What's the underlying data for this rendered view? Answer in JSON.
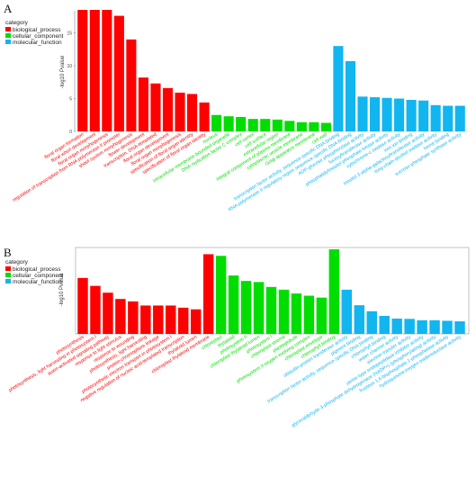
{
  "colors": {
    "biological_process": "#ff0000",
    "cellular_component": "#00dd00",
    "molecular_function": "#11b5f0"
  },
  "chart_data": [
    {
      "panel": "A",
      "type": "bar",
      "ylabel": "-log10 Pvalue",
      "yticks": [
        0,
        5,
        10,
        15
      ],
      "ylim": [
        0,
        18.5
      ],
      "grid": false,
      "legend": {
        "title": "category",
        "position": "top-left",
        "entries": [
          "biological_process",
          "cellular_component",
          "molecular_function"
        ]
      },
      "categories": [
        "floral organ formation",
        "floral whorl development",
        "floral organ morphogenesis",
        "regulation of transcription from RNA polymerase II promoter",
        "shoot system morphogenesis",
        "flower development",
        "transcription, DNA-templated",
        "floral organ development",
        "floral organ morphogenesis",
        "specification of floral organ identity",
        "specification of floral organ identity",
        "nucleus",
        "intracellular membrane-bounded organelle",
        "DNA replication factor C complex",
        "cell cortex",
        "cell surface",
        "extracellular region",
        "integral component of plasma membrane",
        "cytoplasmic vesicle membrane",
        "Golgi apparatus membrane",
        "cell wall",
        "transcription factor activity, sequence-specific DNA binding",
        "RNA polymerase II regulatory region sequence-specific DNA binding",
        "ADP-glucose phosphorylase activity",
        "fucosyltransferase activity",
        "phosphatidylinositol phosphate kinase activity",
        "cytochrome-c oxidase activity",
        "iron ion binding",
        "inositol 3-alpha-galactosyltransferase activity",
        "long-chain-alcohol oxidase activity",
        "heme binding",
        "sucrose-phosphate synthase activity"
      ],
      "groups": [
        "biological_process",
        "biological_process",
        "biological_process",
        "biological_process",
        "biological_process",
        "biological_process",
        "biological_process",
        "biological_process",
        "biological_process",
        "biological_process",
        "biological_process",
        "cellular_component",
        "cellular_component",
        "cellular_component",
        "cellular_component",
        "cellular_component",
        "cellular_component",
        "cellular_component",
        "cellular_component",
        "cellular_component",
        "cellular_component",
        "molecular_function",
        "molecular_function",
        "molecular_function",
        "molecular_function",
        "molecular_function",
        "molecular_function",
        "molecular_function",
        "molecular_function",
        "molecular_function",
        "molecular_function",
        "molecular_function"
      ],
      "values": [
        18.6,
        18.6,
        18.6,
        17.6,
        14.0,
        8.2,
        7.3,
        6.6,
        5.9,
        5.7,
        4.4,
        2.5,
        2.3,
        2.2,
        1.9,
        1.9,
        1.8,
        1.6,
        1.4,
        1.4,
        1.3,
        13.0,
        10.7,
        5.3,
        5.2,
        5.1,
        5.0,
        4.8,
        4.7,
        4.0,
        3.9,
        3.9
      ]
    },
    {
      "panel": "B",
      "type": "bar",
      "ylabel": "-log10 Pvalue",
      "yticks": [],
      "ylim": [
        0,
        31
      ],
      "grid": false,
      "legend": {
        "title": "category",
        "position": "top-left",
        "entries": [
          "biological_process",
          "cellular_component",
          "molecular_function"
        ]
      },
      "categories": [
        "photosynthesis",
        "photosynthesis, light harvesting in photosystem I",
        "auxin-activated signaling pathway",
        "response to light stimulus",
        "response to wounding",
        "photosynthesis, light harvesting",
        "protein-chromophore linkage",
        "photosynthetic electron transport in photosystem I",
        "negative regulation of nucleic acid-templated transcription",
        "thylakoid lumen",
        "chloroplast thylakoid membrane",
        "chloroplast",
        "thylakoid",
        "photosystem II",
        "chloroplast thylakoid lumen",
        "photosystem I",
        "chloroplast stroma",
        "plastoglobule",
        "photosystem II oxygen evolving complex",
        "chloroplast envelope",
        "chlorophyll binding",
        "ubiquitin-protein transferase activity",
        "pigment binding",
        "transcription factor activity, sequence-specific DNA binding",
        "chlorophyll binding",
        "water channel activity",
        "electron transfer activity",
        "serine-type endopeptidase inhibitor activity",
        "glyceraldehyde-3-phosphate dehydrogenase (NADP+) (phosphorylating) activity",
        "fructose 1,6-bisphosphate 1-phosphatase activity",
        "hydroquinone:oxygen oxidoreductase activity"
      ],
      "groups": [
        "biological_process",
        "biological_process",
        "biological_process",
        "biological_process",
        "biological_process",
        "biological_process",
        "biological_process",
        "biological_process",
        "biological_process",
        "biological_process",
        "biological_process",
        "cellular_component",
        "cellular_component",
        "cellular_component",
        "cellular_component",
        "cellular_component",
        "cellular_component",
        "cellular_component",
        "cellular_component",
        "cellular_component",
        "cellular_component",
        "molecular_function",
        "molecular_function",
        "molecular_function",
        "molecular_function",
        "molecular_function",
        "molecular_function",
        "molecular_function",
        "molecular_function",
        "molecular_function",
        "molecular_function"
      ],
      "values": [
        20.5,
        17.6,
        15.1,
        12.8,
        11.9,
        10.4,
        10.4,
        10.4,
        9.6,
        9.0,
        29.2,
        28.6,
        21.4,
        19.4,
        19.0,
        17.2,
        16.2,
        14.8,
        14.0,
        13.3,
        31.0,
        16.2,
        10.5,
        8.3,
        6.6,
        5.6,
        5.5,
        5.0,
        5.0,
        4.8,
        4.6
      ]
    }
  ]
}
